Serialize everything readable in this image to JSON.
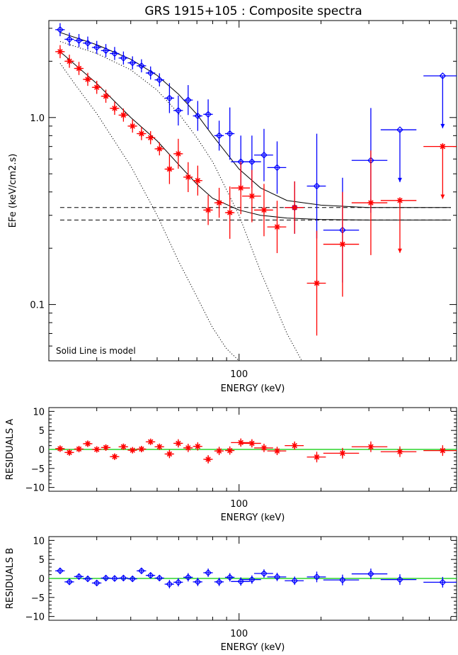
{
  "figure": {
    "title": "GRS 1915+105 : Composite spectra",
    "annotation": "Solid Line is model"
  },
  "chart_data": [
    {
      "type": "scatter",
      "panel": "main",
      "title": "GRS 1915+105 : Composite spectra",
      "xlabel": "ENERGY (keV)",
      "ylabel": "EFe (keV/cm2.s)",
      "xscale": "log",
      "yscale": "log",
      "xlim": [
        20,
        630
      ],
      "ylim": [
        0.05,
        3.3
      ],
      "x_ticklabels": [
        "100"
      ],
      "y_ticklabels": [
        "0.1",
        "1.0"
      ],
      "annotation": "Solid Line is model",
      "series": [
        {
          "marker": "diamond",
          "color": "#0000ff",
          "points": [
            {
              "x": 22.0,
              "y": 2.95
            },
            {
              "x": 23.8,
              "y": 2.62
            },
            {
              "x": 25.8,
              "y": 2.58
            },
            {
              "x": 27.8,
              "y": 2.5
            },
            {
              "x": 30.0,
              "y": 2.37
            },
            {
              "x": 32.4,
              "y": 2.28
            },
            {
              "x": 34.9,
              "y": 2.2
            },
            {
              "x": 37.6,
              "y": 2.08
            },
            {
              "x": 40.6,
              "y": 1.96
            },
            {
              "x": 43.8,
              "y": 1.89
            },
            {
              "x": 47.3,
              "y": 1.73
            },
            {
              "x": 51.0,
              "y": 1.59
            },
            {
              "x": 55.5,
              "y": 1.27
            },
            {
              "x": 59.8,
              "y": 1.09
            },
            {
              "x": 65.0,
              "y": 1.24
            },
            {
              "x": 70.5,
              "y": 1.02
            },
            {
              "x": 77.0,
              "y": 1.04
            },
            {
              "x": 84.5,
              "y": 0.8
            },
            {
              "x": 92.5,
              "y": 0.82
            },
            {
              "x": 101.5,
              "y": 0.58
            },
            {
              "x": 111.5,
              "y": 0.58
            },
            {
              "x": 123.5,
              "y": 0.63
            },
            {
              "x": 138.0,
              "y": 0.54
            },
            {
              "x": 160.0,
              "y": 0.33
            },
            {
              "x": 193.0,
              "y": 0.43
            },
            {
              "x": 240.0,
              "y": 0.25
            },
            {
              "x": 305.0,
              "y": 0.59
            },
            {
              "x": 390.0,
              "y": 0.86,
              "upper_limit": true
            },
            {
              "x": 560.0,
              "y": 1.67,
              "upper_limit": true
            }
          ]
        },
        {
          "marker": "asterisk",
          "color": "#ff0000",
          "points": [
            {
              "x": 22.0,
              "y": 2.25
            },
            {
              "x": 23.8,
              "y": 2.0
            },
            {
              "x": 25.8,
              "y": 1.83
            },
            {
              "x": 27.8,
              "y": 1.6
            },
            {
              "x": 30.0,
              "y": 1.45
            },
            {
              "x": 32.4,
              "y": 1.3
            },
            {
              "x": 34.9,
              "y": 1.12
            },
            {
              "x": 37.6,
              "y": 1.03
            },
            {
              "x": 40.6,
              "y": 0.9
            },
            {
              "x": 43.8,
              "y": 0.82
            },
            {
              "x": 47.3,
              "y": 0.78
            },
            {
              "x": 51.0,
              "y": 0.68
            },
            {
              "x": 55.5,
              "y": 0.53
            },
            {
              "x": 59.8,
              "y": 0.64
            },
            {
              "x": 65.0,
              "y": 0.48
            },
            {
              "x": 70.5,
              "y": 0.46
            },
            {
              "x": 77.0,
              "y": 0.32
            },
            {
              "x": 84.5,
              "y": 0.35
            },
            {
              "x": 92.5,
              "y": 0.31
            },
            {
              "x": 101.5,
              "y": 0.42
            },
            {
              "x": 111.5,
              "y": 0.38
            },
            {
              "x": 123.5,
              "y": 0.32
            },
            {
              "x": 138.0,
              "y": 0.26
            },
            {
              "x": 160.0,
              "y": 0.33
            },
            {
              "x": 193.0,
              "y": 0.13
            },
            {
              "x": 240.0,
              "y": 0.21
            },
            {
              "x": 305.0,
              "y": 0.35
            },
            {
              "x": 390.0,
              "y": 0.36,
              "upper_limit": true
            },
            {
              "x": 560.0,
              "y": 0.7,
              "upper_limit": true
            }
          ]
        }
      ],
      "model_lines": [
        {
          "style": "solid",
          "x": [
            22,
            30,
            40,
            50,
            60,
            70,
            80,
            100,
            120,
            150,
            200,
            300,
            600
          ],
          "y": [
            2.85,
            2.45,
            2.05,
            1.68,
            1.33,
            1.04,
            0.8,
            0.53,
            0.42,
            0.36,
            0.34,
            0.33,
            0.33
          ]
        },
        {
          "style": "solid",
          "x": [
            22,
            30,
            40,
            50,
            60,
            70,
            80,
            100,
            120,
            150,
            200,
            300,
            600
          ],
          "y": [
            2.25,
            1.52,
            1.0,
            0.75,
            0.56,
            0.44,
            0.37,
            0.32,
            0.3,
            0.29,
            0.285,
            0.283,
            0.283
          ]
        },
        {
          "style": "dashed",
          "x": [
            22,
            600
          ],
          "y": [
            0.33,
            0.33
          ]
        },
        {
          "style": "dashed",
          "x": [
            22,
            600
          ],
          "y": [
            0.283,
            0.283
          ]
        },
        {
          "style": "dotted",
          "x": [
            22,
            30,
            40,
            50,
            60,
            70,
            80,
            100,
            120,
            150,
            170
          ],
          "y": [
            2.55,
            2.2,
            1.8,
            1.4,
            1.05,
            0.78,
            0.58,
            0.3,
            0.15,
            0.07,
            0.05
          ]
        },
        {
          "style": "dotted",
          "x": [
            22,
            25,
            30,
            40,
            50,
            60,
            70,
            80,
            90,
            100
          ],
          "y": [
            1.95,
            1.5,
            1.05,
            0.55,
            0.3,
            0.17,
            0.11,
            0.075,
            0.058,
            0.05
          ]
        }
      ]
    },
    {
      "type": "scatter",
      "panel": "residuals-a",
      "xlabel": "ENERGY (keV)",
      "ylabel": "RESIDUALS A",
      "xscale": "log",
      "xlim": [
        20,
        630
      ],
      "ylim": [
        -11,
        11
      ],
      "x_ticklabels": [
        "100"
      ],
      "y_ticklabels": [
        "10",
        "5",
        "0",
        "−5",
        "−10"
      ],
      "reference_line": {
        "y": 0,
        "color": "#00cc00"
      },
      "series": [
        {
          "marker": "asterisk",
          "color": "#ff0000",
          "points": [
            {
              "x": 22.0,
              "y": 0.2
            },
            {
              "x": 23.8,
              "y": -0.8
            },
            {
              "x": 25.8,
              "y": 0.1
            },
            {
              "x": 27.8,
              "y": 1.5
            },
            {
              "x": 30.0,
              "y": 0.0
            },
            {
              "x": 32.4,
              "y": 0.5
            },
            {
              "x": 34.9,
              "y": -1.9
            },
            {
              "x": 37.6,
              "y": 0.7
            },
            {
              "x": 40.6,
              "y": -0.2
            },
            {
              "x": 43.8,
              "y": 0.1
            },
            {
              "x": 47.3,
              "y": 2.0
            },
            {
              "x": 51.0,
              "y": 0.7
            },
            {
              "x": 55.5,
              "y": -1.2
            },
            {
              "x": 59.8,
              "y": 1.6
            },
            {
              "x": 65.0,
              "y": 0.4
            },
            {
              "x": 70.5,
              "y": 0.8
            },
            {
              "x": 77.0,
              "y": -2.6
            },
            {
              "x": 84.5,
              "y": -0.4
            },
            {
              "x": 92.5,
              "y": -0.3
            },
            {
              "x": 101.5,
              "y": 1.8
            },
            {
              "x": 111.5,
              "y": 1.6
            },
            {
              "x": 123.5,
              "y": 0.4
            },
            {
              "x": 138.0,
              "y": -0.4
            },
            {
              "x": 160.0,
              "y": 1.0
            },
            {
              "x": 193.0,
              "y": -2.0
            },
            {
              "x": 240.0,
              "y": -1.0
            },
            {
              "x": 305.0,
              "y": 0.7
            },
            {
              "x": 390.0,
              "y": -0.6
            },
            {
              "x": 560.0,
              "y": -0.3
            }
          ]
        }
      ]
    },
    {
      "type": "scatter",
      "panel": "residuals-b",
      "xlabel": "ENERGY (keV)",
      "ylabel": "RESIDUALS B",
      "xscale": "log",
      "xlim": [
        20,
        630
      ],
      "ylim": [
        -11,
        11
      ],
      "x_ticklabels": [
        "100"
      ],
      "y_ticklabels": [
        "10",
        "5",
        "0",
        "−5",
        "−10"
      ],
      "reference_line": {
        "y": 0,
        "color": "#00cc00"
      },
      "series": [
        {
          "marker": "diamond",
          "color": "#0000ff",
          "points": [
            {
              "x": 22.0,
              "y": 2.0
            },
            {
              "x": 23.8,
              "y": -0.9
            },
            {
              "x": 25.8,
              "y": 0.5
            },
            {
              "x": 27.8,
              "y": -0.1
            },
            {
              "x": 30.0,
              "y": -1.2
            },
            {
              "x": 32.4,
              "y": 0.1
            },
            {
              "x": 34.9,
              "y": 0.0
            },
            {
              "x": 37.6,
              "y": 0.1
            },
            {
              "x": 40.6,
              "y": -0.1
            },
            {
              "x": 43.8,
              "y": 2.0
            },
            {
              "x": 47.3,
              "y": 0.8
            },
            {
              "x": 51.0,
              "y": 0.1
            },
            {
              "x": 55.5,
              "y": -1.5
            },
            {
              "x": 59.8,
              "y": -1.0
            },
            {
              "x": 65.0,
              "y": 0.3
            },
            {
              "x": 70.5,
              "y": -0.9
            },
            {
              "x": 77.0,
              "y": 1.5
            },
            {
              "x": 84.5,
              "y": -0.9
            },
            {
              "x": 92.5,
              "y": 0.3
            },
            {
              "x": 101.5,
              "y": -0.8
            },
            {
              "x": 111.5,
              "y": -0.3
            },
            {
              "x": 123.5,
              "y": 1.3
            },
            {
              "x": 138.0,
              "y": 0.4
            },
            {
              "x": 160.0,
              "y": -0.6
            },
            {
              "x": 193.0,
              "y": 0.4
            },
            {
              "x": 240.0,
              "y": -0.4
            },
            {
              "x": 305.0,
              "y": 1.2
            },
            {
              "x": 390.0,
              "y": -0.3
            },
            {
              "x": 560.0,
              "y": -1.0
            }
          ]
        }
      ]
    }
  ]
}
